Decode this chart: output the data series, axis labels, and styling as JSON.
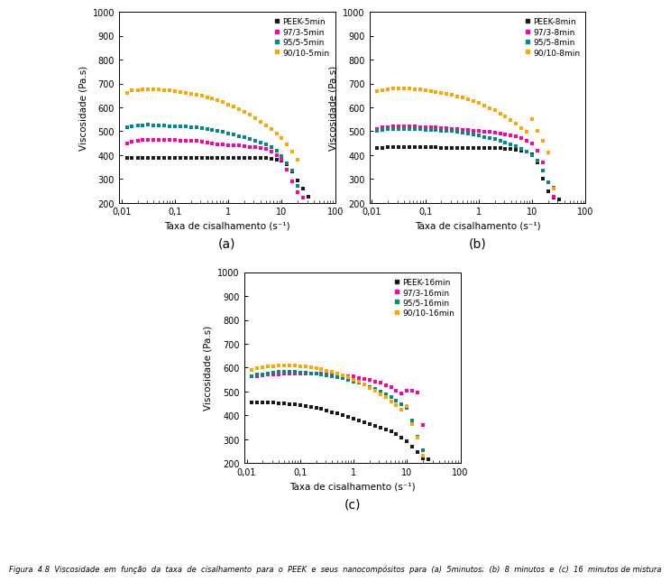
{
  "colors": {
    "black": "#1a1a1a",
    "magenta": "#FF00AA",
    "teal": "#008B8B",
    "orange": "#FFA500"
  },
  "marker": "s",
  "markersize": 3.5,
  "xlabel": "Taxa de cisalhamento (s⁻¹)",
  "ylabel": "Viscosidade (Pa.s)",
  "ylim": [
    200,
    1000
  ],
  "yticks": [
    200,
    300,
    400,
    500,
    600,
    700,
    800,
    900,
    1000
  ],
  "xlim": [
    0.009,
    100
  ],
  "subplot_labels": [
    "(a)",
    "(b)",
    "(c)"
  ],
  "caption": "Figura  4.8  Viscosidade  em  função  da  taxa  de  cisalhamento  para  o  PEEK  e  seus  nanocompósitos  para  (a)  5minutos;  (b)  8  minutos  e  (c)  16  minutos de mistura",
  "plots": [
    {
      "legend_labels": [
        "PEEK-5min",
        "97/3-5min",
        "95/5-5min",
        "90/10-5min"
      ],
      "series": [
        {
          "x": [
            0.0126,
            0.0158,
            0.02,
            0.025,
            0.0316,
            0.0398,
            0.05,
            0.063,
            0.0794,
            0.1,
            0.126,
            0.158,
            0.2,
            0.251,
            0.316,
            0.398,
            0.501,
            0.631,
            0.794,
            1.0,
            1.26,
            1.58,
            2.0,
            2.51,
            3.16,
            3.98,
            5.01,
            6.31,
            7.94,
            10.0,
            12.6,
            15.8,
            20.0,
            25.1,
            31.6
          ],
          "y": [
            390,
            390,
            390,
            390,
            390,
            390,
            390,
            390,
            390,
            390,
            390,
            390,
            390,
            390,
            390,
            390,
            390,
            390,
            390,
            390,
            390,
            390,
            390,
            390,
            390,
            390,
            388,
            385,
            382,
            375,
            360,
            330,
            295,
            260,
            225
          ],
          "color": "#1a1a1a"
        },
        {
          "x": [
            0.0126,
            0.0158,
            0.02,
            0.025,
            0.0316,
            0.0398,
            0.05,
            0.063,
            0.0794,
            0.1,
            0.126,
            0.158,
            0.2,
            0.251,
            0.316,
            0.398,
            0.501,
            0.631,
            0.794,
            1.0,
            1.26,
            1.58,
            2.0,
            2.51,
            3.16,
            3.98,
            5.01,
            6.31,
            7.94,
            10.0,
            12.6,
            15.8,
            20.0,
            25.1
          ],
          "y": [
            450,
            455,
            460,
            462,
            463,
            464,
            463,
            463,
            462,
            462,
            461,
            461,
            461,
            460,
            456,
            452,
            448,
            446,
            444,
            442,
            441,
            440,
            438,
            435,
            432,
            430,
            425,
            415,
            400,
            380,
            340,
            290,
            245,
            220
          ],
          "color": "#FF00AA"
        },
        {
          "x": [
            0.0126,
            0.0158,
            0.02,
            0.025,
            0.0316,
            0.0398,
            0.05,
            0.063,
            0.0794,
            0.1,
            0.126,
            0.158,
            0.2,
            0.251,
            0.316,
            0.398,
            0.501,
            0.631,
            0.794,
            1.0,
            1.26,
            1.58,
            2.0,
            2.51,
            3.16,
            3.98,
            5.01,
            6.31,
            7.94,
            10.0,
            12.6,
            15.8,
            20.0
          ],
          "y": [
            515,
            520,
            525,
            526,
            527,
            526,
            525,
            524,
            522,
            521,
            520,
            519,
            517,
            515,
            513,
            510,
            506,
            501,
            496,
            491,
            486,
            480,
            475,
            468,
            460,
            452,
            444,
            435,
            418,
            395,
            365,
            335,
            270
          ],
          "color": "#008B8B"
        },
        {
          "x": [
            0.0126,
            0.0158,
            0.02,
            0.025,
            0.0316,
            0.0398,
            0.05,
            0.063,
            0.0794,
            0.1,
            0.126,
            0.158,
            0.2,
            0.251,
            0.316,
            0.398,
            0.501,
            0.631,
            0.794,
            1.0,
            1.26,
            1.58,
            2.0,
            2.51,
            3.16,
            3.98,
            5.01,
            6.31,
            7.94,
            10.0,
            12.6,
            15.8,
            20.0
          ],
          "y": [
            662,
            670,
            673,
            675,
            676,
            676,
            675,
            673,
            670,
            667,
            664,
            661,
            657,
            653,
            648,
            642,
            636,
            629,
            621,
            612,
            603,
            592,
            581,
            568,
            554,
            540,
            525,
            508,
            490,
            470,
            445,
            415,
            380
          ],
          "color": "#FFA500"
        }
      ]
    },
    {
      "legend_labels": [
        "PEEK-8min",
        "97/3-8min",
        "95/5-8min",
        "90/10-8min"
      ],
      "series": [
        {
          "x": [
            0.0126,
            0.0158,
            0.02,
            0.025,
            0.0316,
            0.0398,
            0.05,
            0.063,
            0.0794,
            0.1,
            0.126,
            0.158,
            0.2,
            0.251,
            0.316,
            0.398,
            0.501,
            0.631,
            0.794,
            1.0,
            1.26,
            1.58,
            2.0,
            2.51,
            3.16,
            3.98,
            5.01,
            6.31,
            7.94,
            10.0,
            12.6,
            15.8,
            20.0,
            25.1,
            31.6
          ],
          "y": [
            428,
            430,
            432,
            432,
            432,
            432,
            432,
            432,
            432,
            432,
            432,
            432,
            431,
            431,
            430,
            430,
            430,
            429,
            429,
            428,
            428,
            428,
            428,
            428,
            427,
            425,
            423,
            420,
            415,
            405,
            370,
            300,
            248,
            220,
            215
          ],
          "color": "#1a1a1a"
        },
        {
          "x": [
            0.0126,
            0.0158,
            0.02,
            0.025,
            0.0316,
            0.0398,
            0.05,
            0.063,
            0.0794,
            0.1,
            0.126,
            0.158,
            0.2,
            0.251,
            0.316,
            0.398,
            0.501,
            0.631,
            0.794,
            1.0,
            1.26,
            1.58,
            2.0,
            2.51,
            3.16,
            3.98,
            5.01,
            6.31,
            7.94,
            10.0,
            12.6,
            15.8,
            20.0,
            25.1
          ],
          "y": [
            510,
            515,
            518,
            520,
            521,
            521,
            520,
            519,
            518,
            517,
            516,
            515,
            514,
            513,
            511,
            509,
            507,
            505,
            503,
            501,
            499,
            497,
            495,
            492,
            488,
            484,
            478,
            470,
            460,
            448,
            420,
            370,
            285,
            225
          ],
          "color": "#FF00AA"
        },
        {
          "x": [
            0.0126,
            0.0158,
            0.02,
            0.025,
            0.0316,
            0.0398,
            0.05,
            0.063,
            0.0794,
            0.1,
            0.126,
            0.158,
            0.2,
            0.251,
            0.316,
            0.398,
            0.501,
            0.631,
            0.794,
            1.0,
            1.26,
            1.58,
            2.0,
            2.51,
            3.16,
            3.98,
            5.01,
            6.31,
            7.94,
            10.0,
            12.6,
            15.8,
            20.0,
            25.1
          ],
          "y": [
            500,
            505,
            508,
            510,
            510,
            510,
            510,
            509,
            508,
            507,
            506,
            505,
            503,
            502,
            500,
            497,
            494,
            490,
            486,
            482,
            477,
            472,
            466,
            460,
            453,
            445,
            436,
            426,
            414,
            400,
            375,
            335,
            285,
            265
          ],
          "color": "#008B8B"
        },
        {
          "x": [
            0.0126,
            0.0158,
            0.02,
            0.025,
            0.0316,
            0.0398,
            0.05,
            0.063,
            0.0794,
            0.1,
            0.126,
            0.158,
            0.2,
            0.251,
            0.316,
            0.398,
            0.501,
            0.631,
            0.794,
            1.0,
            1.26,
            1.58,
            2.0,
            2.51,
            3.16,
            3.98,
            5.01,
            6.31,
            7.94,
            10.0,
            12.6,
            15.8,
            20.0,
            25.1
          ],
          "y": [
            668,
            672,
            676,
            678,
            679,
            679,
            678,
            677,
            675,
            672,
            669,
            666,
            662,
            658,
            653,
            647,
            641,
            634,
            626,
            618,
            609,
            598,
            587,
            574,
            561,
            547,
            531,
            514,
            496,
            550,
            500,
            460,
            410,
            260
          ],
          "color": "#FFA500"
        }
      ]
    },
    {
      "legend_labels": [
        "PEEK-16min",
        "97/3-16min",
        "95/5-16min",
        "90/10-16min"
      ],
      "series": [
        {
          "x": [
            0.0126,
            0.0158,
            0.02,
            0.025,
            0.0316,
            0.0398,
            0.05,
            0.063,
            0.0794,
            0.1,
            0.126,
            0.158,
            0.2,
            0.251,
            0.316,
            0.398,
            0.501,
            0.631,
            0.794,
            1.0,
            1.26,
            1.58,
            2.0,
            2.51,
            3.16,
            3.98,
            5.01,
            6.31,
            7.94,
            10.0,
            12.6,
            15.8,
            20.0,
            25.1
          ],
          "y": [
            455,
            455,
            454,
            454,
            453,
            452,
            450,
            448,
            445,
            442,
            439,
            435,
            431,
            426,
            420,
            414,
            408,
            401,
            394,
            387,
            380,
            372,
            365,
            356,
            348,
            340,
            332,
            320,
            305,
            290,
            270,
            245,
            220,
            215
          ],
          "color": "#1a1a1a"
        },
        {
          "x": [
            0.0126,
            0.0158,
            0.02,
            0.025,
            0.0316,
            0.0398,
            0.05,
            0.063,
            0.0794,
            0.1,
            0.126,
            0.158,
            0.2,
            0.251,
            0.316,
            0.398,
            0.501,
            0.631,
            0.794,
            1.0,
            1.26,
            1.58,
            2.0,
            2.51,
            3.16,
            3.98,
            5.01,
            6.31,
            7.94,
            10.0,
            12.6,
            15.8,
            20.0
          ],
          "y": [
            562,
            565,
            568,
            570,
            572,
            573,
            574,
            575,
            575,
            575,
            575,
            575,
            575,
            574,
            573,
            572,
            570,
            568,
            565,
            562,
            558,
            554,
            549,
            543,
            536,
            527,
            517,
            505,
            492,
            505,
            505,
            495,
            360
          ],
          "color": "#FF00AA"
        },
        {
          "x": [
            0.0126,
            0.0158,
            0.02,
            0.025,
            0.0316,
            0.0398,
            0.05,
            0.063,
            0.0794,
            0.1,
            0.126,
            0.158,
            0.2,
            0.251,
            0.316,
            0.398,
            0.501,
            0.631,
            0.794,
            1.0,
            1.26,
            1.58,
            2.0,
            2.51,
            3.16,
            3.98,
            5.01,
            6.31,
            7.94,
            10.0,
            12.6,
            15.8,
            20.0
          ],
          "y": [
            565,
            570,
            573,
            577,
            580,
            582,
            583,
            583,
            582,
            580,
            578,
            576,
            574,
            571,
            568,
            564,
            560,
            555,
            549,
            543,
            536,
            528,
            519,
            510,
            499,
            488,
            475,
            462,
            448,
            430,
            380,
            310,
            255
          ],
          "color": "#008B8B"
        },
        {
          "x": [
            0.0126,
            0.0158,
            0.02,
            0.025,
            0.0316,
            0.0398,
            0.05,
            0.063,
            0.0794,
            0.1,
            0.126,
            0.158,
            0.2,
            0.251,
            0.316,
            0.398,
            0.501,
            0.631,
            0.794,
            1.0,
            1.26,
            1.58,
            2.0,
            2.51,
            3.16,
            3.98,
            5.01,
            6.31,
            7.94,
            10.0,
            12.6,
            15.8,
            20.0
          ],
          "y": [
            590,
            597,
            600,
            604,
            606,
            608,
            609,
            609,
            608,
            606,
            604,
            601,
            597,
            593,
            588,
            582,
            575,
            568,
            559,
            550,
            540,
            528,
            516,
            503,
            489,
            475,
            459,
            443,
            425,
            440,
            365,
            305,
            230
          ],
          "color": "#FFA500"
        }
      ]
    }
  ]
}
